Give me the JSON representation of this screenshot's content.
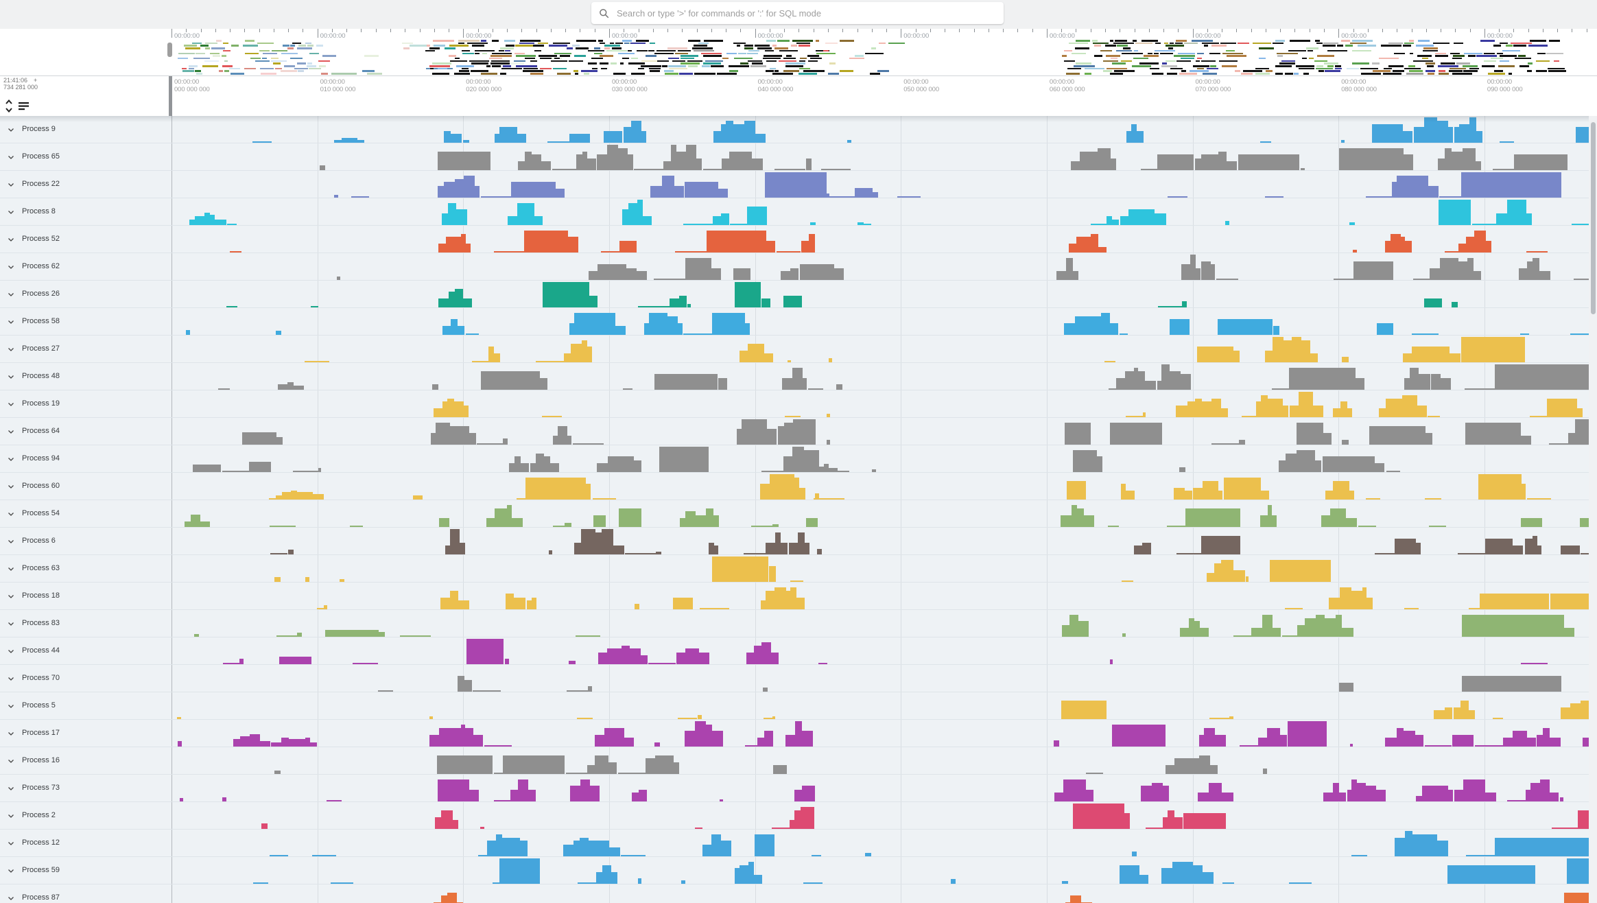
{
  "topbar": {
    "search_placeholder": "Search or type '>' for commands or ':' for SQL mode"
  },
  "left_panel": {
    "timestamp_line1": "21:41:06",
    "timestamp_plus": "+",
    "timestamp_line2": "734 281 000"
  },
  "timeline": {
    "overview_tick_label": "00:00:00",
    "ruler_hours": "00:00:00",
    "ruler_sub": [
      "000 000 000",
      "010 000 000",
      "020 000 000",
      "030 000 000",
      "040 000 000",
      "050 000 000",
      "060 000 000",
      "070 000 000",
      "080 000 000",
      "090 000 000"
    ]
  },
  "processes": [
    {
      "name": "Process 9",
      "color": "#45a5dc",
      "seed": 3
    },
    {
      "name": "Process 65",
      "color": "#8f8f8f",
      "seed": 17
    },
    {
      "name": "Process 22",
      "color": "#7887c9",
      "seed": 42
    },
    {
      "name": "Process 8",
      "color": "#2ec4dd",
      "seed": 7
    },
    {
      "name": "Process 52",
      "color": "#e5633e",
      "seed": 99
    },
    {
      "name": "Process 62",
      "color": "#8f8f8f",
      "seed": 23
    },
    {
      "name": "Process 26",
      "color": "#1aa78a",
      "seed": 56
    },
    {
      "name": "Process 58",
      "color": "#3fabdf",
      "seed": 81
    },
    {
      "name": "Process 27",
      "color": "#ecc04d",
      "seed": 64
    },
    {
      "name": "Process 48",
      "color": "#8f8f8f",
      "seed": 29
    },
    {
      "name": "Process 19",
      "color": "#ecc04d",
      "seed": 5
    },
    {
      "name": "Process 64",
      "color": "#8f8f8f",
      "seed": 71
    },
    {
      "name": "Process 94",
      "color": "#8f8f8f",
      "seed": 38
    },
    {
      "name": "Process 60",
      "color": "#ecc04d",
      "seed": 90
    },
    {
      "name": "Process 54",
      "color": "#8fb573",
      "seed": 13
    },
    {
      "name": "Process 6",
      "color": "#756660",
      "seed": 47
    },
    {
      "name": "Process 63",
      "color": "#ecc04d",
      "seed": 2
    },
    {
      "name": "Process 18",
      "color": "#ecc04d",
      "seed": 61
    },
    {
      "name": "Process 83",
      "color": "#8fb573",
      "seed": 84
    },
    {
      "name": "Process 44",
      "color": "#ab43ae",
      "seed": 19
    },
    {
      "name": "Process 70",
      "color": "#8f8f8f",
      "seed": 33
    },
    {
      "name": "Process 5",
      "color": "#ecc04d",
      "seed": 76
    },
    {
      "name": "Process 17",
      "color": "#ab43ae",
      "seed": 50
    },
    {
      "name": "Process 16",
      "color": "#8f8f8f",
      "seed": 8
    },
    {
      "name": "Process 73",
      "color": "#ab43ae",
      "seed": 27
    },
    {
      "name": "Process 2",
      "color": "#dd4a72",
      "seed": 68
    },
    {
      "name": "Process 12",
      "color": "#45a5dc",
      "seed": 91
    },
    {
      "name": "Process 59",
      "color": "#45a5dc",
      "seed": 44
    },
    {
      "name": "Process 87",
      "color": "#e8733c",
      "seed": 15
    }
  ],
  "activity": {
    "windows": [
      {
        "s": 255,
        "e": 465,
        "d": 0.13,
        "blip": 0.28,
        "m": 18,
        "base": 1
      },
      {
        "s": 465,
        "e": 615,
        "d": 0.02,
        "blip": 0.07,
        "m": 12,
        "base": 0
      },
      {
        "s": 620,
        "e": 1180,
        "d": 0.48,
        "blip": 0.14,
        "m": 37,
        "base": 1
      },
      {
        "s": 1180,
        "e": 1265,
        "d": 0.06,
        "blip": 0.18,
        "m": 16,
        "base": 0
      },
      {
        "s": 1265,
        "e": 1525,
        "d": 0.015,
        "blip": 0.04,
        "m": 30,
        "base": 0
      },
      {
        "s": 1535,
        "e": 2310,
        "d": 0.36,
        "blip": 0.12,
        "m": 37,
        "base": 1,
        "bigend": 2035,
        "alt": 1
      }
    ]
  },
  "minimap": {
    "seed": 1234,
    "rows": 14,
    "windows": [
      {
        "s": 258,
        "e": 470,
        "d": 0.5,
        "black": 0.03,
        "pale": 0.15,
        "wmax": 20,
        "pal": 2
      },
      {
        "s": 470,
        "e": 1010,
        "d": 0.06,
        "black": 0.0,
        "pale": 0.85,
        "wmax": 36,
        "pal": 2
      },
      {
        "s": 618,
        "e": 1192,
        "d": 0.62,
        "black": 0.55,
        "pale": 0.04,
        "wmax": 26,
        "pal": 1
      },
      {
        "s": 1192,
        "e": 1305,
        "d": 0.22,
        "black": 0.1,
        "pale": 0.5,
        "wmax": 24,
        "pal": 1
      },
      {
        "s": 1548,
        "e": 2272,
        "d": 0.58,
        "black": 0.5,
        "pale": 0.05,
        "wmax": 26,
        "pal": 1
      }
    ],
    "palette": [
      "#4e79a7",
      "#6baf4e",
      "#274e13",
      "#e15759",
      "#b6a622",
      "#2aa198",
      "#86b7e8",
      "#b07c3f",
      "#59a14f",
      "#c7e5c0",
      "#9ecae1",
      "#f2b8af",
      "#8c6d31",
      "#3a3aa0"
    ],
    "palette2": [
      "#7fb069",
      "#a8c98a",
      "#5b8db8",
      "#9fc3e8",
      "#d98b82",
      "#b6a622",
      "#66b2a8",
      "#c5dbc0",
      "#88a1c8",
      "#cfe3f0",
      "#2e7d32",
      "#e15759"
    ]
  }
}
